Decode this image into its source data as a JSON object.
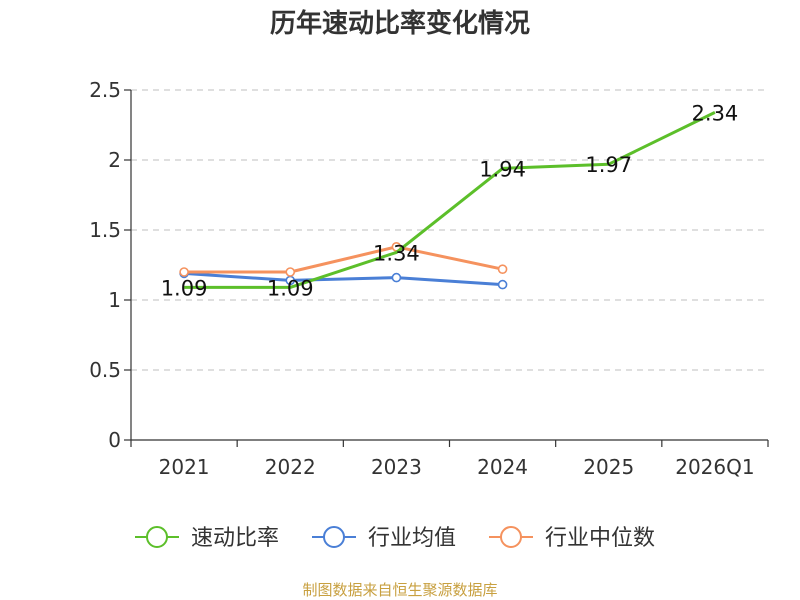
{
  "chart_data": {
    "type": "line",
    "title": "历年速动比率变化情况",
    "categories": [
      "2021",
      "2022",
      "2023",
      "2024",
      "2025",
      "2026Q1"
    ],
    "ylim": [
      0,
      2.5
    ],
    "yticks": [
      "0",
      "0.5",
      "1",
      "1.5",
      "2",
      "2.5"
    ],
    "grid": true,
    "legend_position": "bottom",
    "series": [
      {
        "name": "速动比率",
        "color": "#5cbf2a",
        "values": [
          1.09,
          1.09,
          1.34,
          1.94,
          1.97,
          2.34
        ],
        "labels": [
          "1.09",
          "1.09",
          "1.34",
          "1.94",
          "1.97",
          "2.34"
        ]
      },
      {
        "name": "行业均值",
        "color": "#4a7fd6",
        "values": [
          1.19,
          1.14,
          1.16,
          1.11,
          null,
          null
        ]
      },
      {
        "name": "行业中位数",
        "color": "#f5925e",
        "values": [
          1.2,
          1.2,
          1.38,
          1.22,
          null,
          null
        ]
      }
    ],
    "source": "制图数据来自恒生聚源数据库"
  }
}
